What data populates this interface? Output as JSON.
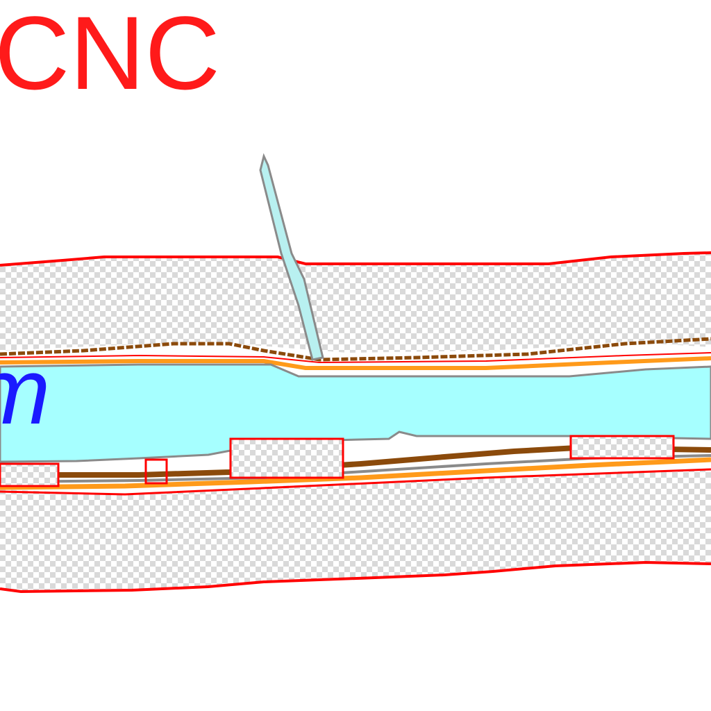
{
  "labels": {
    "top_label": "CNC",
    "river_label": "m"
  },
  "colors": {
    "label_red": "#ff1a1a",
    "boundary_red": "#ff0000",
    "river_fill": "#a6ffff",
    "river_bank_gray": "#8a8a8a",
    "brown_line": "#8b4a0b",
    "orange_line": "#ff9a1a",
    "tributary_fill": "#b8f0f0",
    "river_label_blue": "#1a1aff",
    "checker_gray": "#d9d9d9"
  }
}
